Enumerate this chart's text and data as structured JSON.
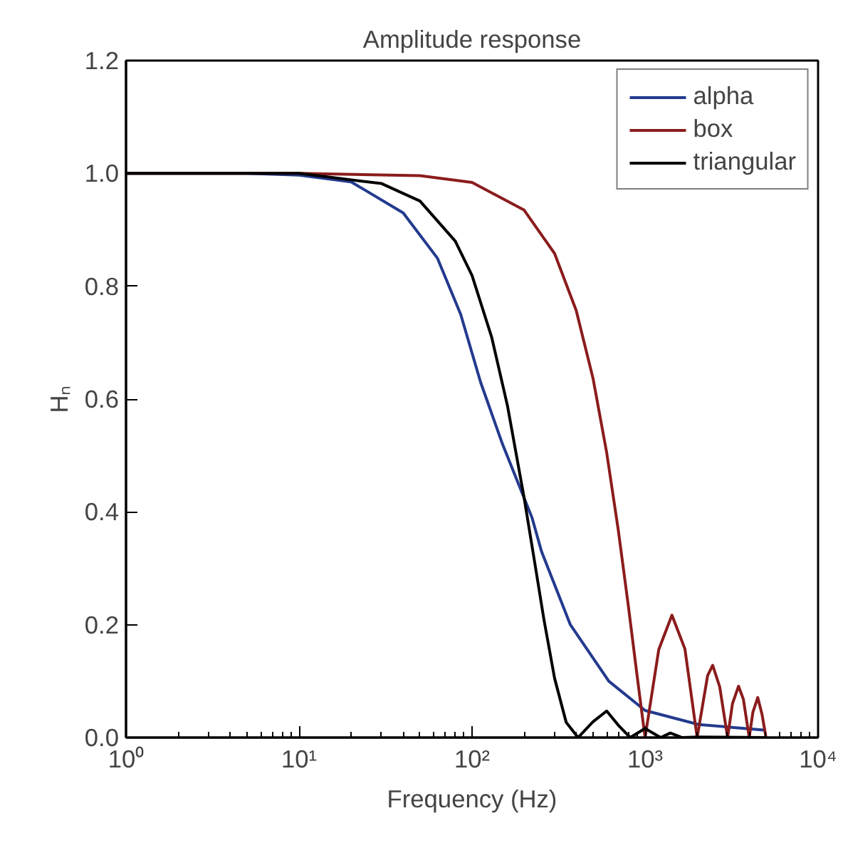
{
  "chart_data": {
    "type": "line",
    "title": "Amplitude response",
    "xlabel": "Frequency (Hz)",
    "ylabel": "Hₙ",
    "log": "x",
    "xlim": [
      1,
      10000
    ],
    "ylim": [
      0,
      1.2
    ],
    "xticks": [
      {
        "value": 1,
        "label": "10⁰"
      },
      {
        "value": 10,
        "label": "10¹"
      },
      {
        "value": 100,
        "label": "10²"
      },
      {
        "value": 1000,
        "label": "10³"
      },
      {
        "value": 10000,
        "label": "10⁴"
      }
    ],
    "yticks": [
      {
        "value": 0,
        "label": "0.0"
      },
      {
        "value": 0.2,
        "label": "0.2"
      },
      {
        "value": 0.4,
        "label": "0.4"
      },
      {
        "value": 0.6,
        "label": "0.6"
      },
      {
        "value": 0.8,
        "label": "0.8"
      },
      {
        "value": 1,
        "label": "1.0"
      },
      {
        "value": 1.2,
        "label": "1.2"
      }
    ],
    "grid": false,
    "legend": "top right",
    "line_style": "solid",
    "marker": "none",
    "series": [
      {
        "name": "alpha",
        "color": "#233a8e",
        "x": [
          1,
          5,
          10,
          20,
          40,
          63,
          86,
          112,
          150,
          222,
          252,
          370,
          617,
          1000,
          2040,
          5000
        ],
        "values": [
          1.0,
          1.0,
          0.997,
          0.985,
          0.93,
          0.85,
          0.75,
          0.63,
          0.52,
          0.39,
          0.33,
          0.2,
          0.1,
          0.048,
          0.023,
          0.013
        ]
      },
      {
        "name": "box",
        "color": "#8b1c1c",
        "x": [
          1,
          10,
          50,
          100,
          200,
          300,
          400,
          500,
          600,
          700,
          800,
          900,
          1000,
          1200,
          1430,
          1700,
          2000,
          2300,
          2460,
          2700,
          3000,
          3200,
          3470,
          3700,
          4000,
          4200,
          4480,
          4750,
          5000
        ],
        "values": [
          1.0,
          1.0,
          0.996,
          0.984,
          0.935,
          0.858,
          0.757,
          0.637,
          0.505,
          0.368,
          0.234,
          0.109,
          0.0,
          0.156,
          0.217,
          0.157,
          0.0,
          0.11,
          0.128,
          0.09,
          0.0,
          0.06,
          0.091,
          0.068,
          0.0,
          0.045,
          0.071,
          0.04,
          0.0
        ]
      },
      {
        "name": "triangular",
        "color": "#000000",
        "x": [
          1,
          10,
          30,
          50,
          80,
          100,
          130,
          160,
          200,
          230,
          260,
          300,
          350,
          410,
          500,
          600,
          700,
          820,
          1000,
          1230,
          1400,
          1640,
          2000,
          5000
        ],
        "values": [
          1.0,
          1.0,
          0.982,
          0.951,
          0.88,
          0.819,
          0.709,
          0.589,
          0.425,
          0.311,
          0.21,
          0.105,
          0.027,
          0.0,
          0.028,
          0.047,
          0.022,
          0.0,
          0.016,
          0.0,
          0.008,
          0.0,
          0.001,
          0.0
        ]
      }
    ]
  }
}
